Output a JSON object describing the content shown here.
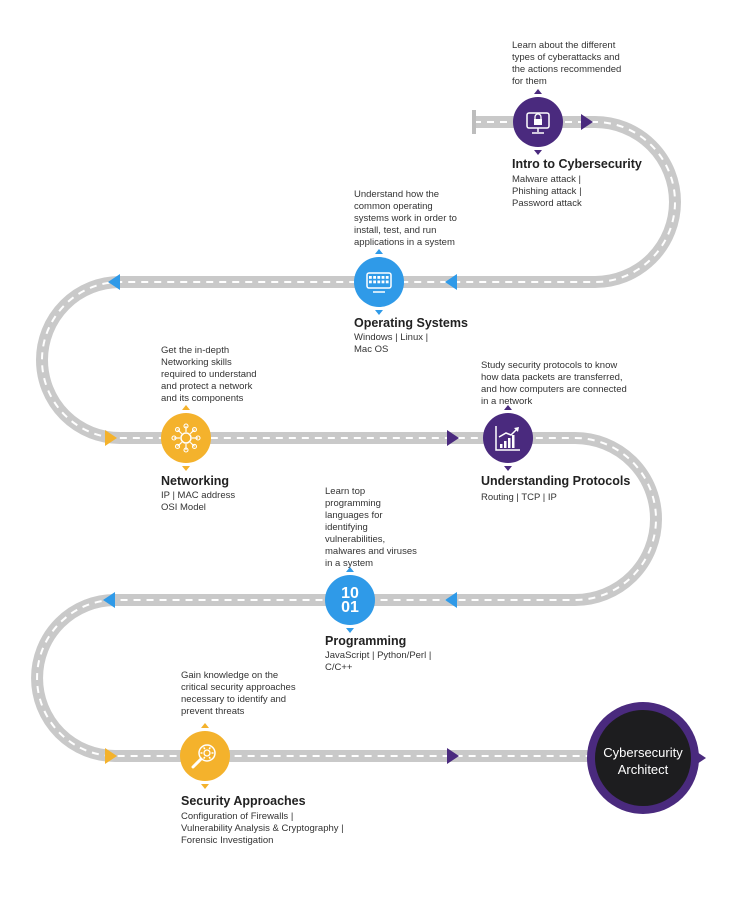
{
  "colors": {
    "road": "#c9c9c9",
    "road_dash": "#ffffff",
    "purple": "#4a2a7e",
    "blue": "#2f9ae8",
    "orange": "#f4b22c",
    "final_ring": "#4a2a7e",
    "final_fill": "#1d1d1f"
  },
  "steps": [
    {
      "title": "Intro to Cybersecurity",
      "description": "Learn about the different types of cyberattacks and the actions recommended for them",
      "topics": [
        "Malware attack |",
        "Phishing attack |",
        "Password attack"
      ],
      "icon": "lock-monitor-icon",
      "color": "purple"
    },
    {
      "title": "Operating Systems",
      "description": "Understand how the common operating systems work in order to install, test, and run applications in a system",
      "topics": [
        "Windows | Linux |",
        "Mac OS"
      ],
      "icon": "keyboard-icon",
      "color": "blue"
    },
    {
      "title": "Networking",
      "description": "Get the in-depth Networking skills required to understand and protect a network and its components",
      "topics": [
        "IP | MAC address",
        "OSI Model"
      ],
      "icon": "network-icon",
      "color": "orange"
    },
    {
      "title": "Understanding Protocols",
      "description": "Study security protocols to know how data packets are transferred, and how computers are connected in a network",
      "topics": [
        "Routing  | TCP | IP"
      ],
      "icon": "growth-chart-icon",
      "color": "purple"
    },
    {
      "title": "Programming",
      "description": "Learn top programming languages for identifying vulnerabilities, malwares and viruses in a system",
      "topics": [
        "JavaScript | Python/Perl |",
        "C/C++"
      ],
      "icon": "binary-code-icon",
      "icon_text": "10\n01",
      "color": "blue"
    },
    {
      "title": "Security Approaches",
      "description": "Gain knowledge on the critical security approaches necessary to identify and prevent threats",
      "topics": [
        "Configuration of Firewalls |",
        "Vulnerability Analysis & Cryptography |",
        "Forensic Investigation"
      ],
      "icon": "gear-magnifier-icon",
      "color": "orange"
    }
  ],
  "final": {
    "line1": "Cybersecurity",
    "line2": "Architect"
  }
}
